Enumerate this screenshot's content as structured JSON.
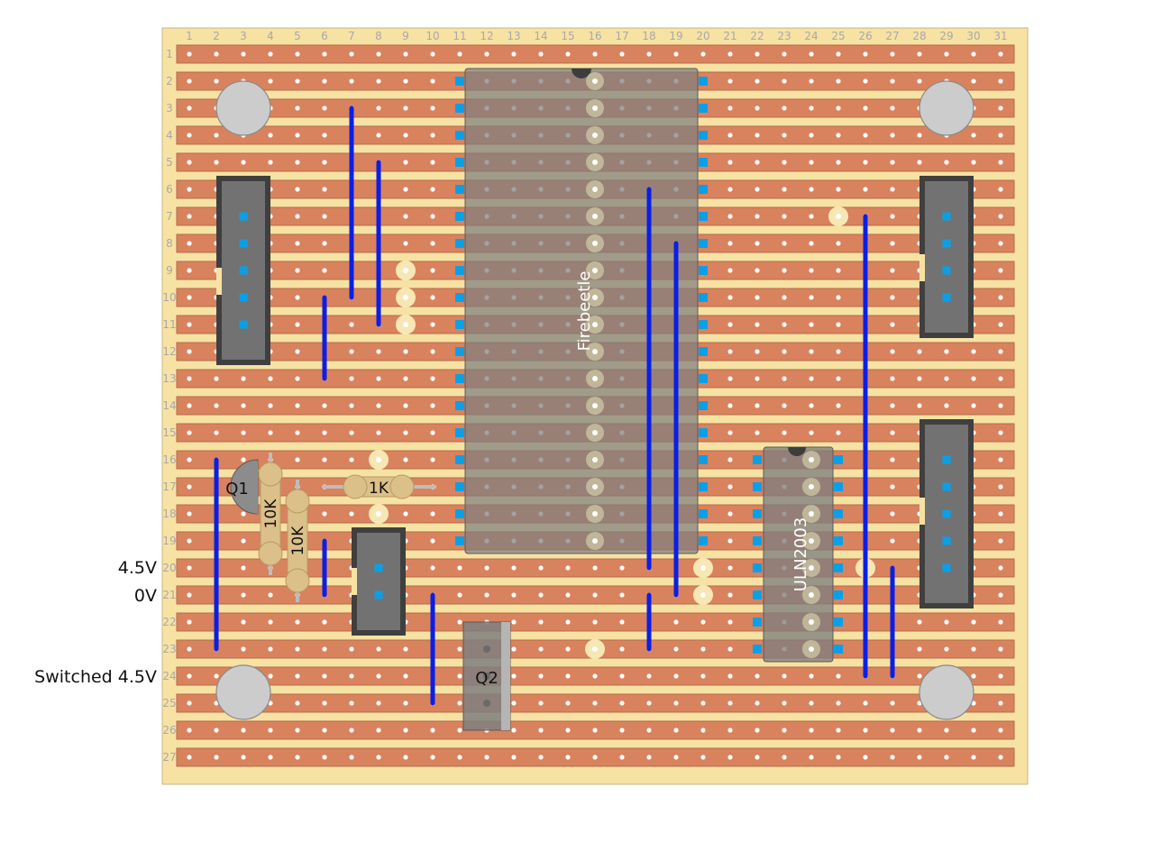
{
  "board": {
    "column_numbers": [
      "1",
      "2",
      "3",
      "4",
      "5",
      "6",
      "7",
      "8",
      "9",
      "10",
      "11",
      "12",
      "13",
      "14",
      "15",
      "16",
      "17",
      "18",
      "19",
      "20",
      "21",
      "22",
      "23",
      "24",
      "25",
      "26",
      "27",
      "28",
      "29",
      "30",
      "31"
    ],
    "row_numbers": [
      "1",
      "2",
      "3",
      "4",
      "5",
      "6",
      "7",
      "8",
      "9",
      "10",
      "11",
      "12",
      "13",
      "14",
      "15",
      "16",
      "17",
      "18",
      "19",
      "20",
      "21",
      "22",
      "23",
      "24",
      "25",
      "26",
      "27"
    ],
    "colors": {
      "board": "#f6e2a3",
      "strip": "#d9825e",
      "hole": "#ffffff",
      "wire": "#0a1fe6",
      "component_body": "#7f7f7f",
      "header_pin": "#0aa0e8",
      "marked_hole": "#f7e7b4"
    }
  },
  "rail_labels": {
    "v45": "4.5V",
    "zero_v": "0V",
    "switched": "Switched 4.5V"
  },
  "components": {
    "firebeetle": "Firebeetle",
    "uln2003": "ULN2003",
    "q1": "Q1",
    "q2": "Q2",
    "r_10k_a": "10K",
    "r_10k_b": "10K",
    "r_1k": "1K"
  }
}
